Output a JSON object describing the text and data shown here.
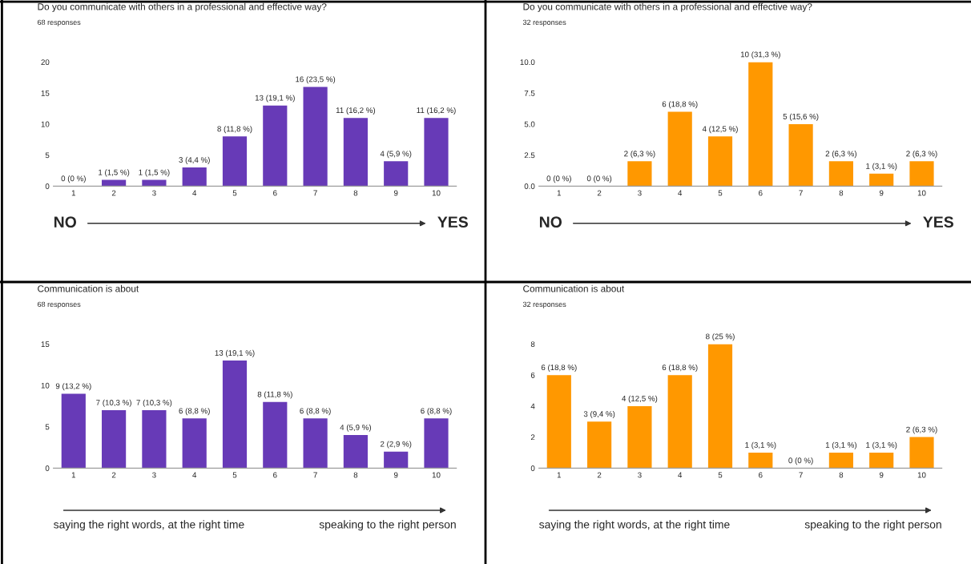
{
  "chart_data": [
    {
      "type": "bar",
      "title": "Do you communicate with others in a professional and effective way?",
      "subtitle": "68 responses",
      "categories": [
        "1",
        "2",
        "3",
        "4",
        "5",
        "6",
        "7",
        "8",
        "9",
        "10"
      ],
      "color": "#673ab7",
      "values": [
        0,
        1,
        1,
        3,
        8,
        13,
        16,
        11,
        4,
        11
      ],
      "value_labels": [
        "0 (0 %)",
        "1 (1,5 %)",
        "1 (1,5 %)",
        "3 (4,4 %)",
        "8 (11,8 %)",
        "13 (19,1 %)",
        "16 (23,5 %)",
        "11 (16,2 %)",
        "4 (5,9 %)",
        "11 (16,2 %)"
      ],
      "ylim": [
        0,
        20
      ],
      "yticks": [
        0,
        5,
        10,
        15,
        20
      ],
      "annotations": [
        "NO",
        "YES"
      ]
    },
    {
      "type": "bar",
      "title": "Do you communicate with others in a professional and effective way?",
      "subtitle": "32 responses",
      "categories": [
        "1",
        "2",
        "3",
        "4",
        "5",
        "6",
        "7",
        "8",
        "9",
        "10"
      ],
      "color": "#ff9800",
      "values": [
        0,
        0,
        2,
        6,
        4,
        10,
        5,
        2,
        1,
        2
      ],
      "value_labels": [
        "0 (0 %)",
        "0 (0 %)",
        "2 (6,3 %)",
        "6 (18,8 %)",
        "4 (12,5 %)",
        "10 (31,3 %)",
        "5 (15,6 %)",
        "2 (6,3 %)",
        "1 (3,1 %)",
        "2 (6,3 %)"
      ],
      "ylim": [
        0,
        10
      ],
      "yticks": [
        {
          "value": 0,
          "label": "0.0"
        },
        {
          "value": 2.5,
          "label": "2.5"
        },
        {
          "value": 5,
          "label": "5.0"
        },
        {
          "value": 7.5,
          "label": "7.5"
        },
        {
          "value": 10,
          "label": "10.0"
        }
      ],
      "annotations": [
        "NO",
        "YES"
      ]
    },
    {
      "type": "bar",
      "title": "Communication is about",
      "subtitle": "68 responses",
      "categories": [
        "1",
        "2",
        "3",
        "4",
        "5",
        "6",
        "7",
        "8",
        "9",
        "10"
      ],
      "color": "#673ab7",
      "values": [
        9,
        7,
        7,
        6,
        13,
        8,
        6,
        4,
        2,
        6
      ],
      "value_labels": [
        "9 (13,2 %)",
        "7 (10,3 %)",
        "7 (10,3 %)",
        "6 (8,8 %)",
        "13 (19,1 %)",
        "8 (11,8 %)",
        "6 (8,8 %)",
        "4 (5,9 %)",
        "2 (2,9 %)",
        "6 (8,8 %)"
      ],
      "ylim": [
        0,
        15
      ],
      "yticks": [
        0,
        5,
        10,
        15
      ],
      "annotations": [
        "saying the right words, at the right time",
        "speaking to the right person"
      ]
    },
    {
      "type": "bar",
      "title": "Communication is about",
      "subtitle": "32 responses",
      "categories": [
        "1",
        "2",
        "3",
        "4",
        "5",
        "6",
        "7",
        "8",
        "9",
        "10"
      ],
      "color": "#ff9800",
      "values": [
        6,
        3,
        4,
        6,
        8,
        1,
        0,
        1,
        1,
        2
      ],
      "value_labels": [
        "6 (18,8 %)",
        "3 (9,4 %)",
        "4 (12,5 %)",
        "6 (18,8 %)",
        "8 (25 %)",
        "1 (3,1 %)",
        "0 (0 %)",
        "1 (3,1 %)",
        "1 (3,1 %)",
        "2 (6,3 %)"
      ],
      "ylim": [
        0,
        8
      ],
      "yticks": [
        0,
        2,
        4,
        6,
        8
      ],
      "annotations": [
        "saying the right words, at the right time",
        "speaking to the right person"
      ]
    }
  ]
}
